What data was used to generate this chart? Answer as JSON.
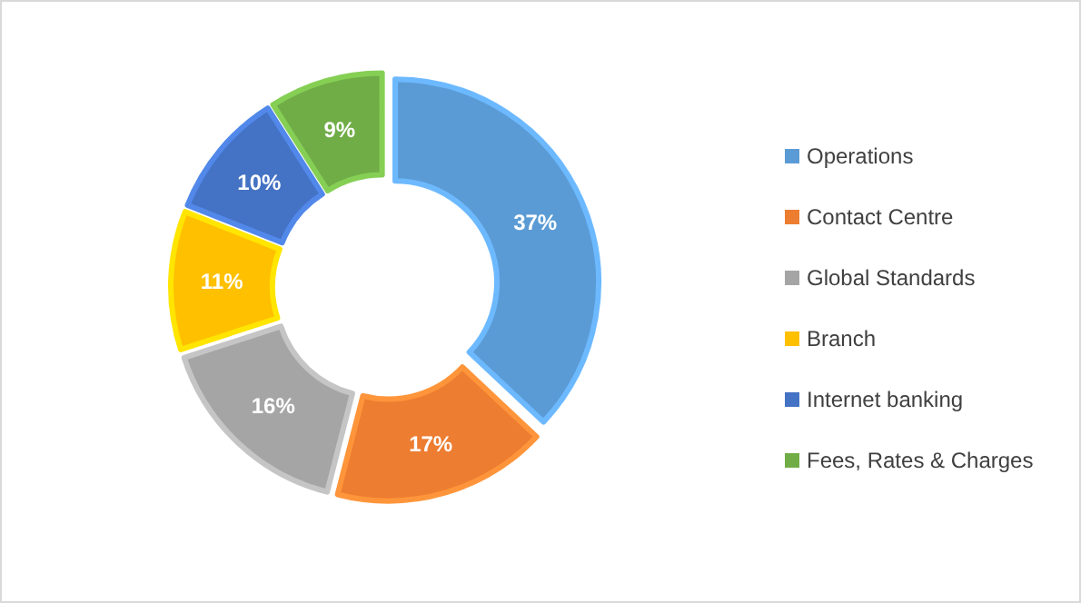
{
  "chart_data": {
    "type": "donut",
    "categories": [
      "Operations",
      "Contact Centre",
      "Global Standards",
      "Branch",
      "Internet banking",
      "Fees, Rates & Charges"
    ],
    "values": [
      37,
      17,
      16,
      11,
      10,
      9
    ],
    "colors": [
      "#5b9bd5",
      "#ed7d31",
      "#a5a5a5",
      "#ffc000",
      "#4472c4",
      "#70ad47"
    ],
    "value_labels": [
      "37%",
      "17%",
      "16%",
      "11%",
      "10%",
      "9%"
    ],
    "legend": "right"
  }
}
